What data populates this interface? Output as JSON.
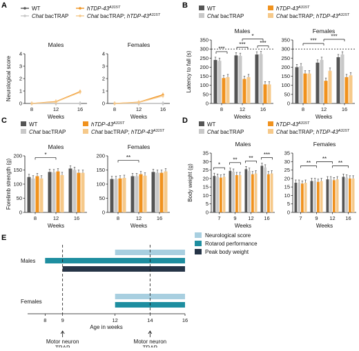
{
  "colors": {
    "wt": "#555555",
    "chat": "#c8c8c8",
    "hTDP": "#f0921e",
    "chat_hTDP": "#f6c98a",
    "neuro_bar": "#a8cfe0",
    "rotarod_bar": "#1e8ea0",
    "weight_bar": "#253447"
  },
  "legend": [
    {
      "key": "wt",
      "base": "WT",
      "sup": ""
    },
    {
      "key": "hTDP",
      "base": "hTDP-43",
      "sup": "A315T"
    },
    {
      "key": "chat",
      "base": "Chat bacTRAP",
      "sup": ""
    },
    {
      "key": "chat_hTDP",
      "base": "Chat bacTRAP; hTDP-43",
      "sup": "A315T"
    }
  ],
  "panels": {
    "A": "A",
    "B": "B",
    "C": "C",
    "D": "D",
    "E": "E"
  },
  "chart_data": [
    {
      "panel": "A",
      "type": "line",
      "xlabel": "Weeks",
      "ylabel": "Neurological score",
      "xticks": [
        "8",
        "12",
        "16"
      ],
      "ylim": [
        0,
        4
      ],
      "yticks": [
        0,
        1,
        2,
        3,
        4
      ],
      "subplots": [
        {
          "title": "Males",
          "series": [
            {
              "key": "wt",
              "values": [
                0,
                0,
                0
              ]
            },
            {
              "key": "chat",
              "values": [
                0,
                0,
                0
              ]
            },
            {
              "key": "hTDP",
              "values": [
                0,
                0.15,
                0.95
              ]
            },
            {
              "key": "chat_hTDP",
              "values": [
                0,
                0.12,
                0.9
              ]
            }
          ]
        },
        {
          "title": "Females",
          "series": [
            {
              "key": "wt",
              "values": [
                0,
                0,
                0
              ]
            },
            {
              "key": "chat",
              "values": [
                0,
                0,
                0
              ]
            },
            {
              "key": "hTDP",
              "values": [
                0,
                0.1,
                0.7
              ]
            },
            {
              "key": "chat_hTDP",
              "values": [
                0,
                0.08,
                0.6
              ]
            }
          ]
        }
      ]
    },
    {
      "panel": "B",
      "type": "bar",
      "xlabel": "Weeks",
      "ylabel": "Latency to fall (s)",
      "categories": [
        "8",
        "12",
        "16"
      ],
      "ylim": [
        0,
        350
      ],
      "yticks": [
        0,
        50,
        100,
        150,
        200,
        250,
        300,
        350
      ],
      "reference_line": 300,
      "subplots": [
        {
          "title": "Males",
          "series": [
            {
              "key": "wt",
              "values": [
                240,
                265,
                270
              ]
            },
            {
              "key": "chat",
              "values": [
                235,
                262,
                272
              ]
            },
            {
              "key": "hTDP",
              "values": [
                140,
                135,
                105
              ]
            },
            {
              "key": "chat_hTDP",
              "values": [
                145,
                145,
                105
              ]
            }
          ],
          "stars": [
            "***",
            "***",
            "***",
            "*"
          ]
        },
        {
          "title": "Females",
          "series": [
            {
              "key": "wt",
              "values": [
                200,
                225,
                255
              ]
            },
            {
              "key": "chat",
              "values": [
                205,
                240,
                270
              ]
            },
            {
              "key": "hTDP",
              "values": [
                165,
                125,
                145
              ]
            },
            {
              "key": "chat_hTDP",
              "values": [
                165,
                180,
                155
              ]
            }
          ],
          "stars": [
            "***",
            "***"
          ]
        }
      ]
    },
    {
      "panel": "C",
      "type": "bar",
      "xlabel": "Weeks",
      "ylabel": "Forelimb strength (g)",
      "categories": [
        "8",
        "12",
        "16"
      ],
      "ylim": [
        0,
        200
      ],
      "yticks": [
        0,
        50,
        100,
        150,
        200
      ],
      "subplots": [
        {
          "title": "Males",
          "series": [
            {
              "key": "wt",
              "values": [
                125,
                143,
                155
              ]
            },
            {
              "key": "chat",
              "values": [
                120,
                142,
                150
              ]
            },
            {
              "key": "hTDP",
              "values": [
                128,
                145,
                140
              ]
            },
            {
              "key": "chat_hTDP",
              "values": [
                120,
                132,
                140
              ]
            }
          ],
          "stars": [
            "*"
          ]
        },
        {
          "title": "Females",
          "series": [
            {
              "key": "wt",
              "values": [
                118,
                128,
                143
              ]
            },
            {
              "key": "chat",
              "values": [
                118,
                128,
                140
              ]
            },
            {
              "key": "hTDP",
              "values": [
                120,
                135,
                140
              ]
            },
            {
              "key": "chat_hTDP",
              "values": [
                122,
                130,
                145
              ]
            }
          ],
          "stars": [
            "**"
          ]
        }
      ]
    },
    {
      "panel": "D",
      "type": "bar",
      "xlabel": "Weeks",
      "ylabel": "Body weight (g)",
      "categories": [
        "7",
        "9",
        "12",
        "16"
      ],
      "ylim": [
        0,
        35
      ],
      "yticks": [
        0,
        5,
        10,
        15,
        20,
        25,
        30,
        35
      ],
      "subplots": [
        {
          "title": "Males",
          "series": [
            {
              "key": "wt",
              "values": [
                21.5,
                24.5,
                25.5,
                27.5
              ]
            },
            {
              "key": "chat",
              "values": [
                21,
                24,
                24.5,
                26.5
              ]
            },
            {
              "key": "hTDP",
              "values": [
                20.5,
                22,
                22.5,
                22.5
              ]
            },
            {
              "key": "chat_hTDP",
              "values": [
                21,
                22,
                23,
                23
              ]
            }
          ],
          "stars": [
            "*",
            "**",
            "**",
            "***"
          ]
        },
        {
          "title": "Females",
          "series": [
            {
              "key": "wt",
              "values": [
                17.5,
                18.5,
                19.5,
                21
              ]
            },
            {
              "key": "chat",
              "values": [
                17.5,
                18.5,
                19.5,
                20.5
              ]
            },
            {
              "key": "hTDP",
              "values": [
                17,
                18,
                19,
                20
              ]
            },
            {
              "key": "chat_hTDP",
              "values": [
                17.5,
                18.5,
                19.5,
                20
              ]
            }
          ],
          "stars": [
            "**",
            "**",
            "**"
          ]
        }
      ]
    },
    {
      "panel": "E",
      "type": "timeline",
      "xlabel": "Age in weeks",
      "xticks": [
        8,
        9,
        12,
        14,
        16
      ],
      "xlim": [
        7,
        16
      ],
      "groups": [
        {
          "name": "Males",
          "bars": [
            {
              "key": "neuro_bar",
              "start": 12,
              "end": 16
            },
            {
              "key": "rotarod_bar",
              "start": 8,
              "end": 16
            },
            {
              "key": "weight_bar",
              "start": 9,
              "end": 16
            }
          ]
        },
        {
          "name": "Females",
          "bars": [
            {
              "key": "neuro_bar",
              "start": 12,
              "end": 16
            },
            {
              "key": "rotarod_bar",
              "start": 12,
              "end": 16
            }
          ]
        }
      ],
      "legend": [
        {
          "key": "neuro_bar",
          "label": "Neurological score"
        },
        {
          "key": "rotarod_bar",
          "label": "Rotarod performance"
        },
        {
          "key": "weight_bar",
          "label": "Peak body weight"
        }
      ],
      "markers": [
        {
          "week": 9,
          "label1": "Motor neuron",
          "label2": "TRAP"
        },
        {
          "week": 14,
          "label1": "Motor neuron",
          "label2": "TRAP"
        }
      ]
    }
  ]
}
